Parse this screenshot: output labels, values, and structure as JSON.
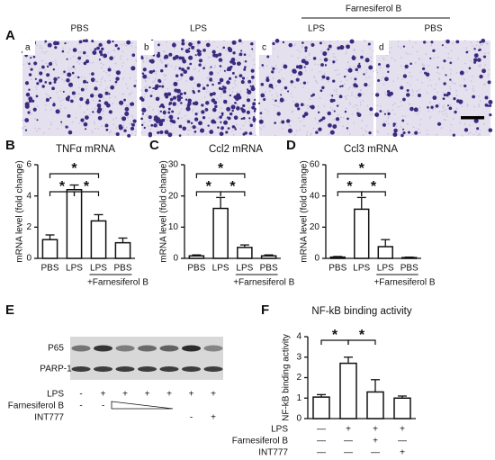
{
  "panel_a": {
    "label": "A",
    "group_label": "Farnesiferol B",
    "images": [
      {
        "letter": "a",
        "label": "PBS"
      },
      {
        "letter": "b",
        "label": "LPS"
      },
      {
        "letter": "c",
        "label": "LPS"
      },
      {
        "letter": "d",
        "label": "PBS"
      }
    ]
  },
  "chart_data": [
    {
      "type": "bar",
      "panel": "B",
      "title": "TNFα mRNA",
      "y_label": "mRNA level (fold change)",
      "categories": [
        "PBS",
        "LPS",
        "LPS",
        "PBS"
      ],
      "values": [
        1.2,
        4.4,
        2.4,
        1.0
      ],
      "errors": [
        0.3,
        0.3,
        0.4,
        0.3
      ],
      "ylim": [
        0,
        6
      ],
      "yticks": [
        0,
        2,
        4,
        6
      ],
      "group_label": "+Farnesiferol B",
      "significance": [
        "*",
        "*",
        "*"
      ],
      "color": "#ffffff"
    },
    {
      "type": "bar",
      "panel": "C",
      "title": "Ccl2 mRNA",
      "y_label": "mRNA level (fold change)",
      "categories": [
        "PBS",
        "LPS",
        "LPS",
        "PBS"
      ],
      "values": [
        0.8,
        16,
        3.5,
        0.8
      ],
      "errors": [
        0.3,
        3.5,
        0.8,
        0.3
      ],
      "ylim": [
        0,
        30
      ],
      "yticks": [
        0,
        10,
        20,
        30
      ],
      "group_label": "+Farnesiferol B",
      "significance": [
        "*",
        "*",
        "*"
      ],
      "color": "#ffffff"
    },
    {
      "type": "bar",
      "panel": "D",
      "title": "Ccl3 mRNA",
      "y_label": "mRNA level (fold change)",
      "categories": [
        "PBS",
        "LPS",
        "LPS",
        "PBS"
      ],
      "values": [
        0.8,
        31.5,
        7.5,
        0.5
      ],
      "errors": [
        0.4,
        7.5,
        4.5,
        0.3
      ],
      "ylim": [
        0,
        60
      ],
      "yticks": [
        0,
        20,
        40,
        60
      ],
      "group_label": "+Farnesiferol B",
      "significance": [
        "*",
        "*",
        "*"
      ],
      "color": "#ffffff"
    },
    {
      "type": "bar",
      "panel": "F",
      "title": "NF-kB binding activity",
      "y_label": "NF-kB binding activity",
      "values": [
        1.05,
        2.7,
        1.3,
        1.0
      ],
      "errors": [
        0.12,
        0.3,
        0.6,
        0.1
      ],
      "ylim": [
        0,
        4
      ],
      "yticks": [
        0,
        1,
        2,
        3,
        4
      ],
      "significance": [
        "*",
        "*"
      ],
      "color": "#ffffff",
      "conditions": [
        {
          "name": "LPS",
          "marks": [
            "—",
            "+",
            "+",
            "+"
          ]
        },
        {
          "name": "Farnesiferol B",
          "marks": [
            "—",
            "—",
            "+",
            "—"
          ]
        },
        {
          "name": "INT777",
          "marks": [
            "—",
            "—",
            "—",
            "+"
          ]
        }
      ]
    }
  ],
  "panel_e": {
    "label": "E",
    "bands": [
      "P65",
      "PARP-1"
    ],
    "conditions": [
      {
        "name": "LPS",
        "marks": [
          "-",
          "+",
          "+",
          "+",
          "+",
          "+",
          "+"
        ]
      },
      {
        "name": "Farnesiferol B",
        "marks": [
          "-",
          "-",
          null,
          null,
          null,
          null,
          null
        ]
      },
      {
        "name": "INT777",
        "marks": [
          null,
          null,
          null,
          null,
          null,
          "-",
          "+"
        ]
      }
    ]
  }
}
